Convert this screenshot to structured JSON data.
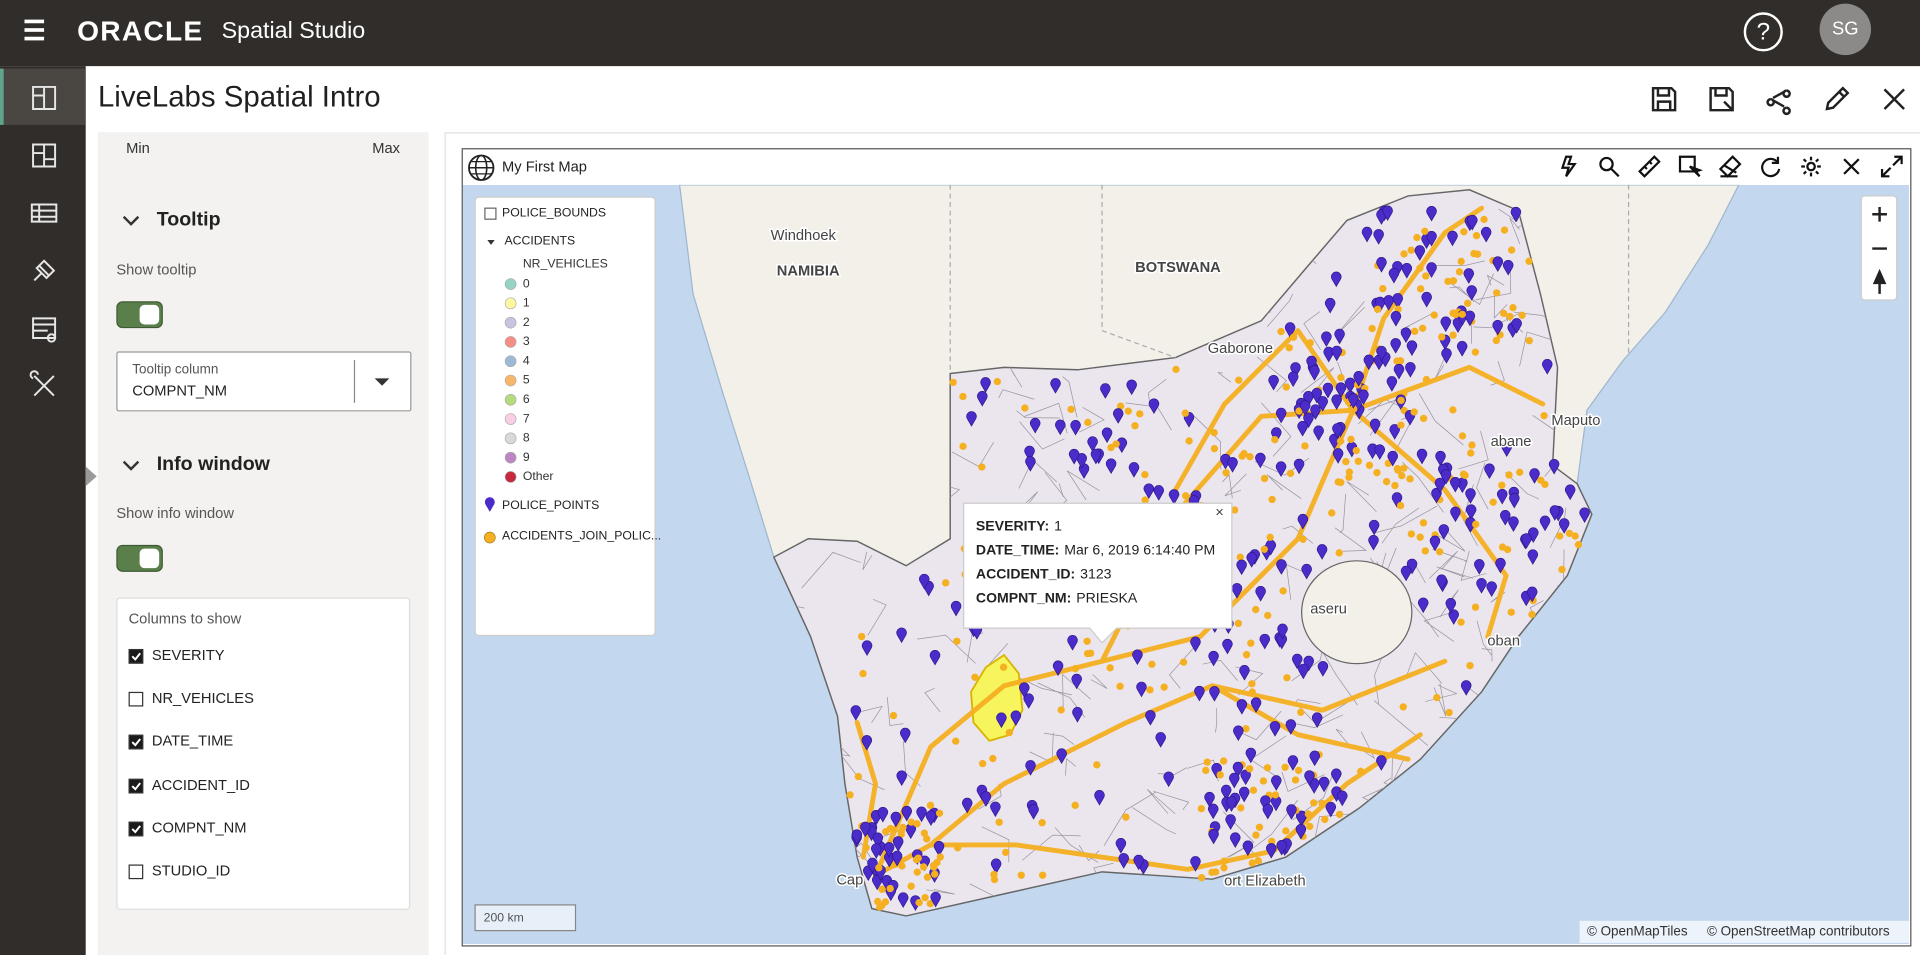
{
  "header": {
    "brand": "ORACLE",
    "product": "Spatial Studio",
    "avatar": "SG"
  },
  "page_title": "LiveLabs Spatial Intro",
  "panel": {
    "range": {
      "min": "Min",
      "max": "Max"
    },
    "tooltip": {
      "heading": "Tooltip",
      "show_label": "Show tooltip",
      "enabled": true,
      "column_label": "Tooltip column",
      "column_value": "COMPNT_NM"
    },
    "info_window": {
      "heading": "Info window",
      "show_label": "Show info window",
      "enabled": true,
      "columns_heading": "Columns to show",
      "columns": [
        {
          "name": "SEVERITY",
          "checked": true
        },
        {
          "name": "NR_VEHICLES",
          "checked": false
        },
        {
          "name": "DATE_TIME",
          "checked": true
        },
        {
          "name": "ACCIDENT_ID",
          "checked": true
        },
        {
          "name": "COMPNT_NM",
          "checked": true
        },
        {
          "name": "STUDIO_ID",
          "checked": false
        }
      ]
    }
  },
  "map": {
    "title": "My First Map",
    "places": [
      "Windhoek",
      "NAMIBIA",
      "BOTSWANA",
      "Gaborone",
      "Maputo",
      "abane",
      "aseru",
      "oban",
      "Cap",
      "ort Elizabeth"
    ],
    "legend": {
      "layers": [
        {
          "name": "POLICE_BOUNDS"
        },
        {
          "name": "ACCIDENTS",
          "field": "NR_VEHICLES",
          "classes": [
            {
              "label": "0",
              "color": "#94d4c4"
            },
            {
              "label": "1",
              "color": "#fdf9a0"
            },
            {
              "label": "2",
              "color": "#c9c3e2"
            },
            {
              "label": "3",
              "color": "#f58e84"
            },
            {
              "label": "4",
              "color": "#9cbad6"
            },
            {
              "label": "5",
              "color": "#f8b66a"
            },
            {
              "label": "6",
              "color": "#b4dc7d"
            },
            {
              "label": "7",
              "color": "#f9cde3"
            },
            {
              "label": "8",
              "color": "#d9d9d9"
            },
            {
              "label": "9",
              "color": "#bb86c1"
            },
            {
              "label": "Other",
              "color": "#c6283e"
            }
          ]
        },
        {
          "name": "POLICE_POINTS",
          "color": "#4b2bc9"
        },
        {
          "name": "ACCIDENTS_JOIN_POLIC...",
          "color": "#f5b021"
        }
      ]
    },
    "popup": [
      {
        "key": "SEVERITY:",
        "value": "1"
      },
      {
        "key": "DATE_TIME:",
        "value": "Mar 6, 2019 6:14:40 PM"
      },
      {
        "key": "ACCIDENT_ID:",
        "value": "3123"
      },
      {
        "key": "COMPNT_NM:",
        "value": "PRIESKA"
      }
    ],
    "scale": "200 km",
    "attribution": [
      "© OpenMapTiles",
      "© OpenStreetMap contributors"
    ]
  }
}
